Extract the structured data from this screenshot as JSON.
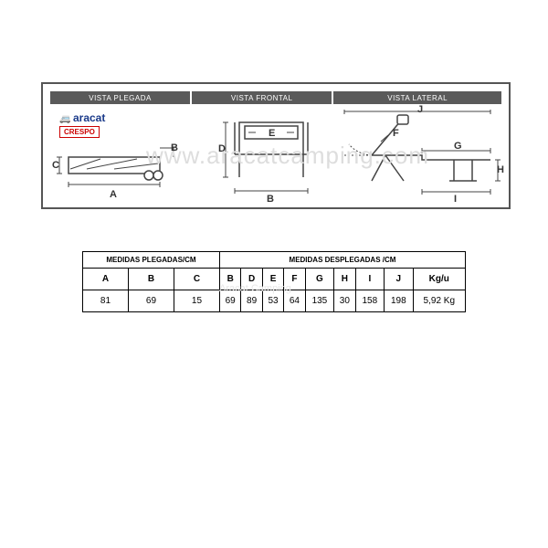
{
  "headers": {
    "folded": "VISTA PLEGADA",
    "front": "VISTA FRONTAL",
    "side": "VISTA LATERAL"
  },
  "logo1": "aracat",
  "logo2": "CRESPO",
  "dims": {
    "A": "A",
    "B": "B",
    "C": "C",
    "D": "D",
    "E": "E",
    "F": "F",
    "G": "G",
    "H": "H",
    "I": "I",
    "J": "J"
  },
  "table": {
    "group1": "MEDIDAS PLEGADAS/CM",
    "group2": "MEDIDAS DESPLEGADAS /CM",
    "cols": [
      "A",
      "B",
      "C",
      "B",
      "D",
      "E",
      "F",
      "G",
      "H",
      "I",
      "J",
      "Kg/u"
    ],
    "row": [
      "81",
      "69",
      "15",
      "69",
      "89",
      "53",
      "64",
      "135",
      "30",
      "158",
      "198",
      "5,92 Kg"
    ]
  },
  "watermark": "www.aracatcamping.com",
  "watermark2": "Aracat Camping",
  "colors": {
    "header_bg": "#5a5a5a",
    "line": "#444444"
  }
}
